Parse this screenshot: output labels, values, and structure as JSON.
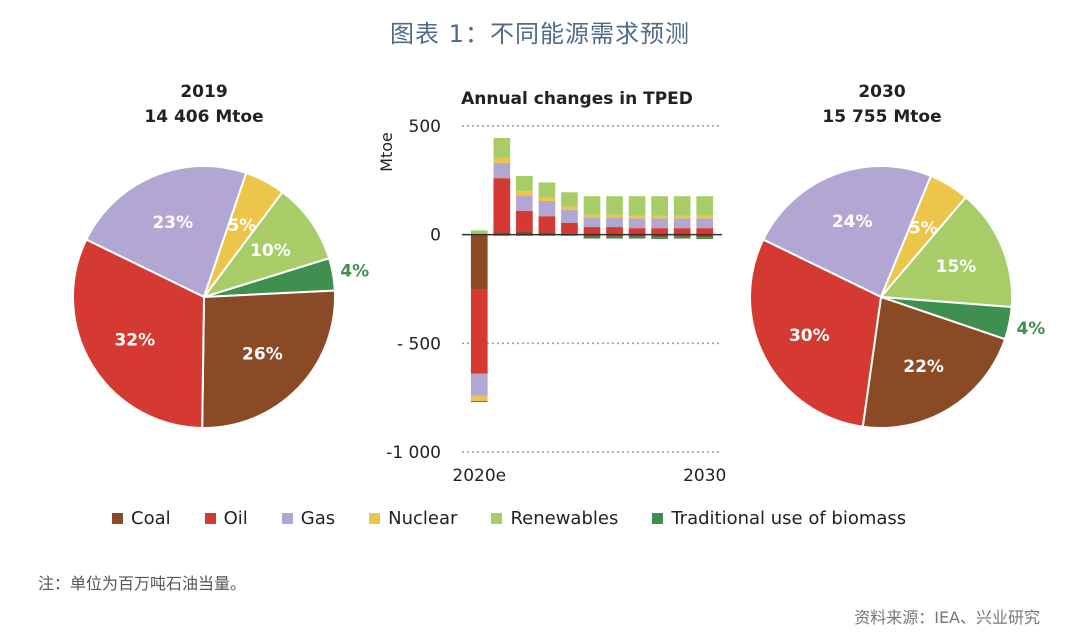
{
  "figure_title": "图表 1：不同能源需求预测",
  "note": "注：单位为百万吨石油当量。",
  "source": "资料来源：IEA、兴业研究",
  "colors": {
    "Coal": "#8b4a26",
    "Oil": "#d43a32",
    "Gas": "#b2a7d2",
    "Nuclear": "#ecc54a",
    "Renewables": "#a7cc68",
    "Traditional use of biomass": "#3f8f50"
  },
  "legend": [
    "Coal",
    "Oil",
    "Gas",
    "Nuclear",
    "Renewables",
    "Traditional use of biomass"
  ],
  "chart_data": [
    {
      "type": "pie",
      "title": "2019",
      "subtitle": "14 406 Mtoe",
      "slices": [
        {
          "name": "Gas",
          "value": 23,
          "label": "23%"
        },
        {
          "name": "Nuclear",
          "value": 5,
          "label": "5%"
        },
        {
          "name": "Renewables",
          "value": 10,
          "label": "10%"
        },
        {
          "name": "Traditional use of biomass",
          "value": 4,
          "label": "4%"
        },
        {
          "name": "Coal",
          "value": 26,
          "label": "26%"
        },
        {
          "name": "Oil",
          "value": 32,
          "label": "32%"
        }
      ]
    },
    {
      "type": "bar",
      "stacked": true,
      "title": "Annual changes in TPED",
      "ylabel": "Mtoe",
      "ylim": [
        -1000,
        500
      ],
      "yticks": [
        500,
        0,
        -500,
        -1000
      ],
      "ytick_labels": [
        "500",
        "0",
        "- 500",
        "-1 000"
      ],
      "grid": "dotted",
      "categories": [
        "2020e",
        "2021",
        "2022",
        "2023",
        "2024",
        "2025",
        "2026",
        "2027",
        "2028",
        "2029",
        "2030"
      ],
      "xtick_labels": {
        "2020e": "2020e",
        "2030": "2030"
      },
      "series": [
        {
          "name": "Coal",
          "values": [
            -250,
            10,
            15,
            10,
            5,
            -10,
            -10,
            -10,
            -12,
            -10,
            -12
          ]
        },
        {
          "name": "Oil",
          "values": [
            -390,
            250,
            95,
            75,
            50,
            35,
            35,
            30,
            30,
            30,
            30
          ]
        },
        {
          "name": "Gas",
          "values": [
            -100,
            70,
            70,
            70,
            60,
            45,
            45,
            45,
            45,
            45,
            45
          ]
        },
        {
          "name": "Nuclear",
          "values": [
            -25,
            25,
            20,
            15,
            15,
            12,
            12,
            12,
            12,
            12,
            12
          ]
        },
        {
          "name": "Renewables",
          "values": [
            20,
            90,
            70,
            70,
            65,
            85,
            85,
            90,
            90,
            90,
            90
          ]
        },
        {
          "name": "Traditional use of biomass",
          "values": [
            -5,
            -5,
            -5,
            -5,
            -5,
            -8,
            -8,
            -8,
            -8,
            -8,
            -8
          ]
        }
      ]
    },
    {
      "type": "pie",
      "title": "2030",
      "subtitle": "15 755 Mtoe",
      "slices": [
        {
          "name": "Gas",
          "value": 24,
          "label": "24%"
        },
        {
          "name": "Nuclear",
          "value": 5,
          "label": "5%"
        },
        {
          "name": "Renewables",
          "value": 15,
          "label": "15%"
        },
        {
          "name": "Traditional use of biomass",
          "value": 4,
          "label": "4%"
        },
        {
          "name": "Coal",
          "value": 22,
          "label": "22%"
        },
        {
          "name": "Oil",
          "value": 30,
          "label": "30%"
        }
      ]
    }
  ]
}
